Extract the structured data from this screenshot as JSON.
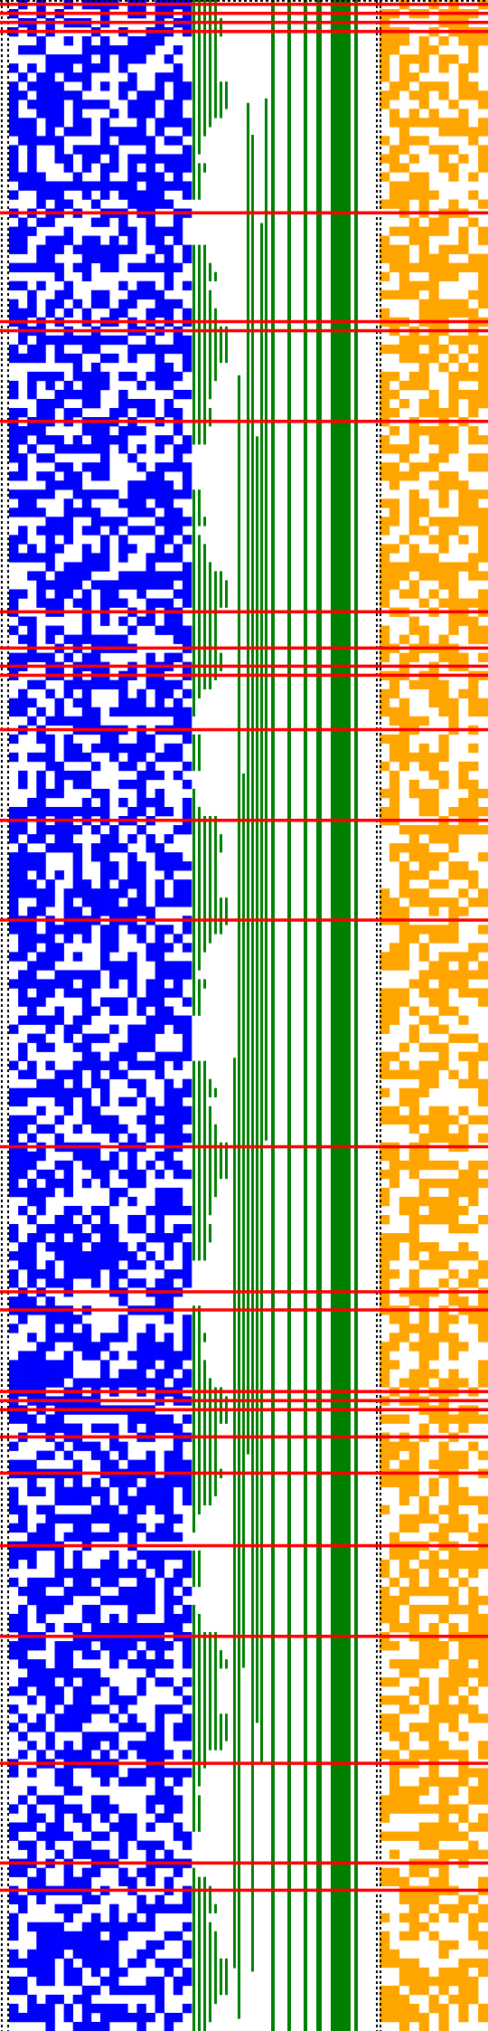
{
  "colors": {
    "background": "#ffffff",
    "left_pattern": "#0000ff",
    "middle_bars": "#008000",
    "right_pattern": "#ffa500",
    "separators": "#000000",
    "highlight_rows": "#ff0000"
  },
  "grid": {
    "rows": 224,
    "left_columns": 20,
    "right_columns": 11,
    "right_density": 0.55,
    "green_bar_count": 18
  },
  "highlight_row_indices": [
    0,
    1,
    2,
    3,
    23,
    35,
    36,
    46,
    67,
    71,
    73,
    74,
    80,
    90,
    101,
    126,
    142,
    144,
    153,
    154,
    155,
    158,
    162,
    170,
    180,
    194,
    205,
    208
  ]
}
